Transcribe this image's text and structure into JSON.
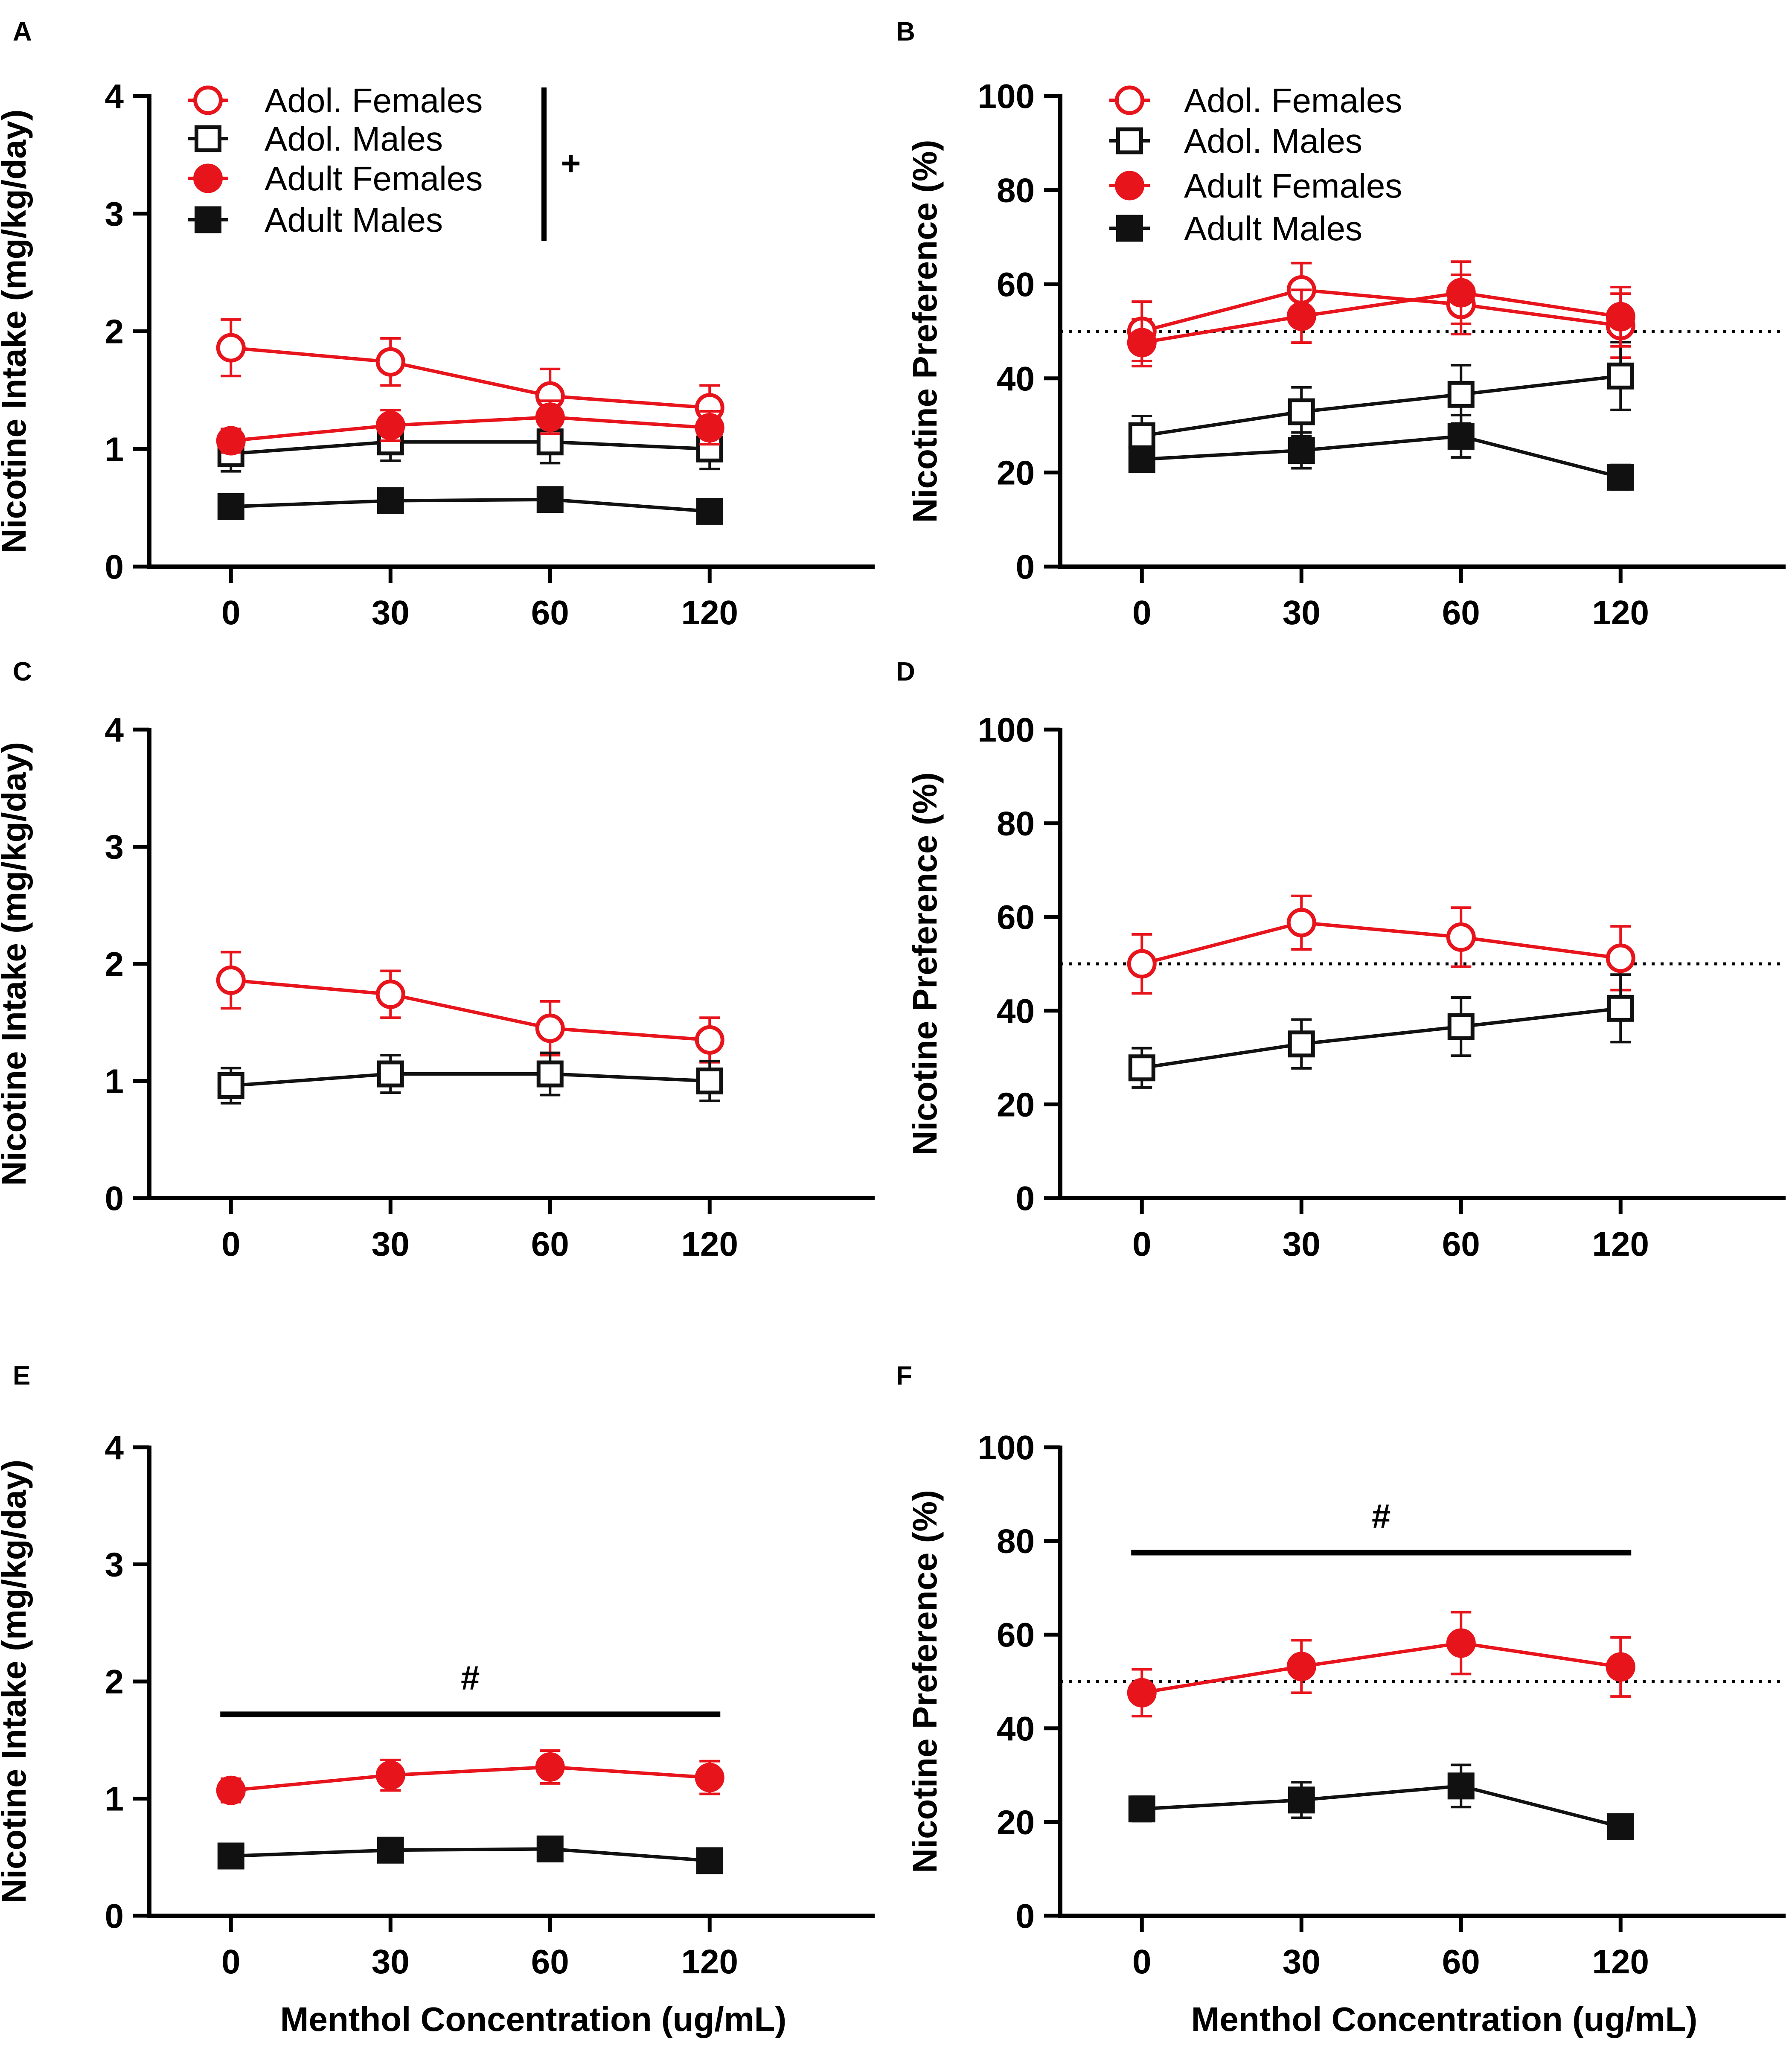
{
  "figure": {
    "x_tick_labels": [
      "0",
      "30",
      "60",
      "120"
    ],
    "x_axis_title": "Menthol Concentration (ug/mL)"
  },
  "colors": {
    "red": "#e8141c",
    "black": "#111111"
  },
  "chart_data": [
    {
      "panel": "A",
      "type": "line",
      "ylabel": "Nicotine Intake (mg/kg/day)",
      "xlabel": "",
      "ylim": [
        0,
        4
      ],
      "yticks": [
        "0",
        "1",
        "2",
        "3",
        "4"
      ],
      "categories": [
        "0",
        "30",
        "60",
        "120"
      ],
      "legend": true,
      "legend_position": "top-left",
      "group_annotation": "+",
      "series": [
        {
          "name": "Adol. Females",
          "color": "red",
          "marker": "circle",
          "filled": false,
          "values": [
            1.86,
            1.74,
            1.45,
            1.35
          ],
          "errors": [
            0.24,
            0.2,
            0.23,
            0.19
          ]
        },
        {
          "name": "Adol. Males",
          "color": "black",
          "marker": "square",
          "filled": false,
          "values": [
            0.96,
            1.06,
            1.06,
            1.0
          ],
          "errors": [
            0.15,
            0.16,
            0.18,
            0.17
          ]
        },
        {
          "name": "Adult Females",
          "color": "red",
          "marker": "circle",
          "filled": true,
          "values": [
            1.07,
            1.2,
            1.27,
            1.18
          ],
          "errors": [
            0.1,
            0.13,
            0.14,
            0.14
          ]
        },
        {
          "name": "Adult Males",
          "color": "black",
          "marker": "square",
          "filled": true,
          "values": [
            0.51,
            0.56,
            0.57,
            0.47
          ],
          "errors": [
            0.04,
            0.07,
            0.07,
            0.06
          ]
        }
      ]
    },
    {
      "panel": "B",
      "type": "line",
      "ylabel": "Nicotine Preference (%)",
      "xlabel": "",
      "ylim": [
        0,
        100
      ],
      "yticks": [
        "0",
        "20",
        "40",
        "60",
        "80",
        "100"
      ],
      "categories": [
        "0",
        "30",
        "60",
        "120"
      ],
      "reference_line": 50,
      "legend": true,
      "legend_position": "top-left",
      "series": [
        {
          "name": "Adol. Females",
          "color": "red",
          "marker": "circle",
          "filled": false,
          "values": [
            50.0,
            58.8,
            55.7,
            51.2
          ],
          "errors": [
            6.3,
            5.7,
            6.3,
            6.8
          ]
        },
        {
          "name": "Adol. Males",
          "color": "black",
          "marker": "square",
          "filled": false,
          "values": [
            27.8,
            32.9,
            36.6,
            40.5
          ],
          "errors": [
            4.2,
            5.2,
            6.2,
            7.2
          ]
        },
        {
          "name": "Adult Females",
          "color": "red",
          "marker": "circle",
          "filled": true,
          "values": [
            47.6,
            53.2,
            58.2,
            53.1
          ],
          "errors": [
            5.0,
            5.6,
            6.6,
            6.3
          ]
        },
        {
          "name": "Adult Males",
          "color": "black",
          "marker": "square",
          "filled": true,
          "values": [
            22.8,
            24.7,
            27.7,
            19.0
          ],
          "errors": [
            2.6,
            3.8,
            4.5,
            2.6
          ]
        }
      ]
    },
    {
      "panel": "C",
      "type": "line",
      "ylabel": "Nicotine Intake (mg/kg/day)",
      "xlabel": "",
      "ylim": [
        0,
        4
      ],
      "yticks": [
        "0",
        "1",
        "2",
        "3",
        "4"
      ],
      "categories": [
        "0",
        "30",
        "60",
        "120"
      ],
      "legend": false,
      "series": [
        {
          "name": "Adol. Females",
          "color": "red",
          "marker": "circle",
          "filled": false,
          "values": [
            1.86,
            1.74,
            1.45,
            1.35
          ],
          "errors": [
            0.24,
            0.2,
            0.23,
            0.19
          ]
        },
        {
          "name": "Adol. Males",
          "color": "black",
          "marker": "square",
          "filled": false,
          "values": [
            0.96,
            1.06,
            1.06,
            1.0
          ],
          "errors": [
            0.15,
            0.16,
            0.18,
            0.17
          ]
        }
      ]
    },
    {
      "panel": "D",
      "type": "line",
      "ylabel": "Nicotine Preference (%)",
      "xlabel": "",
      "ylim": [
        0,
        100
      ],
      "yticks": [
        "0",
        "20",
        "40",
        "60",
        "80",
        "100"
      ],
      "categories": [
        "0",
        "30",
        "60",
        "120"
      ],
      "reference_line": 50,
      "legend": false,
      "series": [
        {
          "name": "Adol. Females",
          "color": "red",
          "marker": "circle",
          "filled": false,
          "values": [
            50.0,
            58.8,
            55.7,
            51.2
          ],
          "errors": [
            6.3,
            5.7,
            6.3,
            6.8
          ]
        },
        {
          "name": "Adol. Males",
          "color": "black",
          "marker": "square",
          "filled": false,
          "values": [
            27.8,
            32.9,
            36.6,
            40.5
          ],
          "errors": [
            4.2,
            5.2,
            6.2,
            7.2
          ]
        }
      ]
    },
    {
      "panel": "E",
      "type": "line",
      "ylabel": "Nicotine Intake (mg/kg/day)",
      "xlabel": "Menthol Concentration (ug/mL)",
      "ylim": [
        0,
        4
      ],
      "yticks": [
        "0",
        "1",
        "2",
        "3",
        "4"
      ],
      "categories": [
        "0",
        "30",
        "60",
        "120"
      ],
      "legend": false,
      "significance": {
        "label": "#",
        "level": 1.72
      },
      "series": [
        {
          "name": "Adult Females",
          "color": "red",
          "marker": "circle",
          "filled": true,
          "values": [
            1.07,
            1.2,
            1.27,
            1.18
          ],
          "errors": [
            0.1,
            0.13,
            0.14,
            0.14
          ]
        },
        {
          "name": "Adult Males",
          "color": "black",
          "marker": "square",
          "filled": true,
          "values": [
            0.51,
            0.56,
            0.57,
            0.47
          ],
          "errors": [
            0.04,
            0.07,
            0.07,
            0.06
          ]
        }
      ]
    },
    {
      "panel": "F",
      "type": "line",
      "ylabel": "Nicotine Preference (%)",
      "xlabel": "Menthol Concentration (ug/mL)",
      "ylim": [
        0,
        100
      ],
      "yticks": [
        "0",
        "20",
        "40",
        "60",
        "80",
        "100"
      ],
      "categories": [
        "0",
        "30",
        "60",
        "120"
      ],
      "reference_line": 50,
      "legend": false,
      "significance": {
        "label": "#",
        "level": 77.5
      },
      "series": [
        {
          "name": "Adult Females",
          "color": "red",
          "marker": "circle",
          "filled": true,
          "values": [
            47.6,
            53.2,
            58.2,
            53.1
          ],
          "errors": [
            5.0,
            5.6,
            6.6,
            6.3
          ]
        },
        {
          "name": "Adult Males",
          "color": "black",
          "marker": "square",
          "filled": true,
          "values": [
            22.8,
            24.7,
            27.7,
            19.0
          ],
          "errors": [
            2.6,
            3.8,
            4.5,
            2.6
          ]
        }
      ]
    }
  ]
}
